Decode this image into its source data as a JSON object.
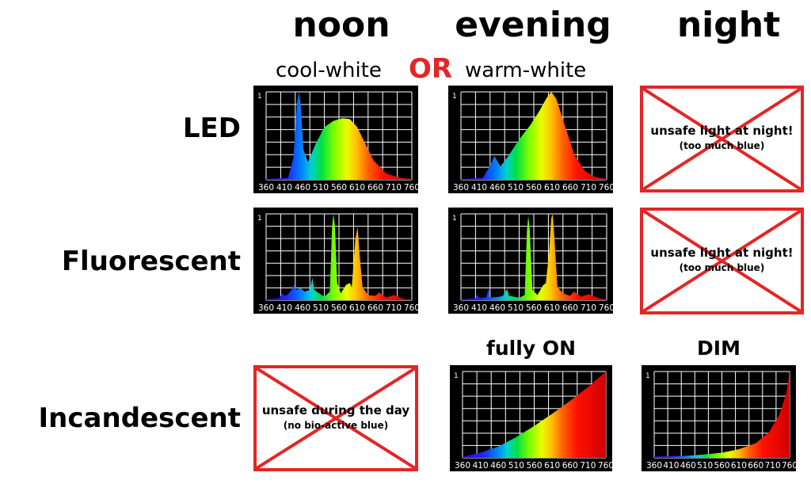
{
  "columns": {
    "noon": "noon",
    "evening": "evening",
    "night": "night"
  },
  "subheads": {
    "cool": "cool-white",
    "or": "OR",
    "warm": "warm-white"
  },
  "rows": {
    "led": "LED",
    "fluorescent": "Fluorescent",
    "incandescent": "Incandescent"
  },
  "captions": {
    "fully_on": "fully ON",
    "dim": "DIM"
  },
  "warnings": {
    "night_line1": "unsafe light at night!",
    "night_line2": "(too much blue)",
    "day_line1": "unsafe during the day",
    "day_line2": "(no bio-active blue)"
  },
  "colors": {
    "warning_red": "#e32626",
    "grid": "#ffffff",
    "background": "#000000"
  },
  "chart_data": [
    {
      "id": "led-cool",
      "type": "area",
      "x": [
        360,
        410,
        460,
        510,
        560,
        610,
        660,
        710,
        760
      ],
      "ylim": [
        0,
        1
      ],
      "ytick": "1",
      "points": [
        [
          360,
          0.01
        ],
        [
          420,
          0.02
        ],
        [
          435,
          0.25
        ],
        [
          445,
          0.88
        ],
        [
          450,
          1.0
        ],
        [
          455,
          0.85
        ],
        [
          462,
          0.35
        ],
        [
          475,
          0.2
        ],
        [
          495,
          0.4
        ],
        [
          520,
          0.6
        ],
        [
          545,
          0.67
        ],
        [
          570,
          0.7
        ],
        [
          590,
          0.69
        ],
        [
          610,
          0.6
        ],
        [
          630,
          0.43
        ],
        [
          655,
          0.22
        ],
        [
          690,
          0.07
        ],
        [
          730,
          0.02
        ],
        [
          760,
          0.01
        ]
      ]
    },
    {
      "id": "led-warm",
      "type": "area",
      "x": [
        360,
        410,
        460,
        510,
        560,
        610,
        660,
        710,
        760
      ],
      "ylim": [
        0,
        1
      ],
      "ytick": "1",
      "points": [
        [
          360,
          0.01
        ],
        [
          420,
          0.02
        ],
        [
          440,
          0.16
        ],
        [
          452,
          0.27
        ],
        [
          468,
          0.15
        ],
        [
          490,
          0.27
        ],
        [
          520,
          0.46
        ],
        [
          550,
          0.62
        ],
        [
          575,
          0.78
        ],
        [
          595,
          0.93
        ],
        [
          608,
          1.0
        ],
        [
          622,
          0.92
        ],
        [
          645,
          0.62
        ],
        [
          672,
          0.28
        ],
        [
          700,
          0.1
        ],
        [
          730,
          0.03
        ],
        [
          760,
          0.01
        ]
      ]
    },
    {
      "id": "fluor-cool",
      "type": "area",
      "x": [
        360,
        410,
        460,
        510,
        560,
        610,
        660,
        710,
        760
      ],
      "ylim": [
        0,
        1
      ],
      "ytick": "1",
      "points": [
        [
          360,
          0.01
        ],
        [
          395,
          0.02
        ],
        [
          405,
          0.08
        ],
        [
          410,
          0.05
        ],
        [
          420,
          0.07
        ],
        [
          432,
          0.13
        ],
        [
          437,
          0.18
        ],
        [
          442,
          0.12
        ],
        [
          455,
          0.14
        ],
        [
          465,
          0.1
        ],
        [
          480,
          0.12
        ],
        [
          487,
          0.26
        ],
        [
          492,
          0.12
        ],
        [
          505,
          0.08
        ],
        [
          520,
          0.04
        ],
        [
          535,
          0.1
        ],
        [
          541,
          0.85
        ],
        [
          545,
          1.0
        ],
        [
          549,
          0.85
        ],
        [
          555,
          0.2
        ],
        [
          565,
          0.08
        ],
        [
          580,
          0.18
        ],
        [
          590,
          0.2
        ],
        [
          595,
          0.15
        ],
        [
          605,
          0.7
        ],
        [
          611,
          0.85
        ],
        [
          616,
          0.55
        ],
        [
          625,
          0.15
        ],
        [
          640,
          0.06
        ],
        [
          660,
          0.05
        ],
        [
          670,
          0.09
        ],
        [
          690,
          0.03
        ],
        [
          710,
          0.06
        ],
        [
          740,
          0.01
        ],
        [
          760,
          0.01
        ]
      ]
    },
    {
      "id": "fluor-warm",
      "type": "area",
      "x": [
        360,
        410,
        460,
        510,
        560,
        610,
        660,
        710,
        760
      ],
      "ylim": [
        0,
        1
      ],
      "ytick": "1",
      "points": [
        [
          360,
          0.01
        ],
        [
          400,
          0.02
        ],
        [
          405,
          0.07
        ],
        [
          410,
          0.03
        ],
        [
          430,
          0.03
        ],
        [
          436,
          0.14
        ],
        [
          440,
          0.03
        ],
        [
          465,
          0.04
        ],
        [
          475,
          0.05
        ],
        [
          487,
          0.13
        ],
        [
          492,
          0.05
        ],
        [
          520,
          0.03
        ],
        [
          535,
          0.06
        ],
        [
          541,
          0.8
        ],
        [
          545,
          0.98
        ],
        [
          549,
          0.8
        ],
        [
          556,
          0.12
        ],
        [
          570,
          0.06
        ],
        [
          585,
          0.17
        ],
        [
          593,
          0.2
        ],
        [
          602,
          0.55
        ],
        [
          608,
          0.95
        ],
        [
          612,
          1.0
        ],
        [
          617,
          0.7
        ],
        [
          625,
          0.15
        ],
        [
          640,
          0.08
        ],
        [
          660,
          0.05
        ],
        [
          670,
          0.1
        ],
        [
          690,
          0.04
        ],
        [
          710,
          0.07
        ],
        [
          740,
          0.02
        ],
        [
          760,
          0.01
        ]
      ]
    },
    {
      "id": "incand-on",
      "type": "area",
      "x": [
        360,
        410,
        460,
        510,
        560,
        610,
        660,
        710,
        760
      ],
      "ylim": [
        0,
        1
      ],
      "ytick": "1",
      "points": [
        [
          360,
          0.01
        ],
        [
          410,
          0.06
        ],
        [
          460,
          0.13
        ],
        [
          510,
          0.24
        ],
        [
          560,
          0.37
        ],
        [
          610,
          0.51
        ],
        [
          660,
          0.66
        ],
        [
          710,
          0.82
        ],
        [
          760,
          1.0
        ]
      ]
    },
    {
      "id": "incand-dim",
      "type": "area",
      "x": [
        360,
        410,
        460,
        510,
        560,
        610,
        660,
        710,
        760
      ],
      "ylim": [
        0,
        1
      ],
      "ytick": "1",
      "points": [
        [
          360,
          0.015
        ],
        [
          410,
          0.02
        ],
        [
          460,
          0.025
        ],
        [
          510,
          0.04
        ],
        [
          560,
          0.06
        ],
        [
          610,
          0.1
        ],
        [
          660,
          0.17
        ],
        [
          700,
          0.3
        ],
        [
          730,
          0.5
        ],
        [
          750,
          0.75
        ],
        [
          760,
          1.0
        ]
      ]
    }
  ]
}
